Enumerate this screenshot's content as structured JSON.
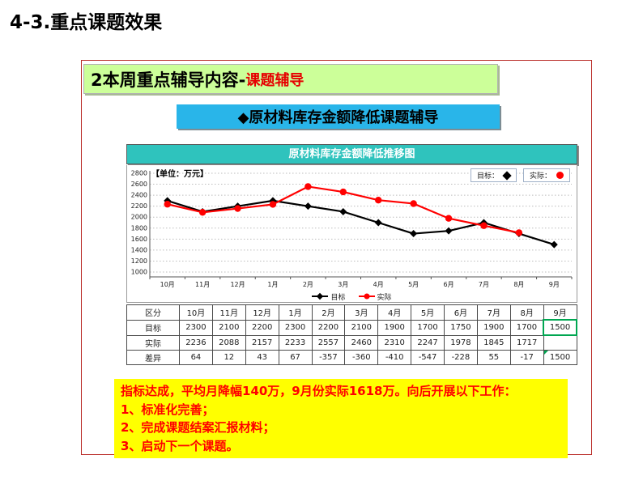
{
  "page_title": "4-3.重点课题效果",
  "header": {
    "main": "2本周重点辅导内容-",
    "highlight": "课题辅导"
  },
  "subheader": "◆原材料库存金额降低课题辅导",
  "chart_data": {
    "type": "line",
    "title": "原材料库存金额降低推移图",
    "unit_label": "【单位：万元】",
    "categories": [
      "10月",
      "11月",
      "12月",
      "1月",
      "2月",
      "3月",
      "4月",
      "5月",
      "6月",
      "7月",
      "8月",
      "9月"
    ],
    "series": [
      {
        "name": "目标",
        "marker": "diamond",
        "color": "#000000",
        "values": [
          2300,
          2100,
          2200,
          2300,
          2200,
          2100,
          1900,
          1700,
          1750,
          1900,
          1700,
          1500
        ]
      },
      {
        "name": "实际",
        "marker": "circle",
        "color": "#ff0000",
        "values": [
          2236,
          2088,
          2157,
          2233,
          2557,
          2460,
          2310,
          2247,
          1978,
          1845,
          1717,
          null
        ]
      }
    ],
    "ylim": [
      1000,
      2800
    ],
    "ytick_step": 200,
    "grid": "dotted-horizontal",
    "legend_top": [
      {
        "label": "目标：",
        "marker": "diamond",
        "color": "#000000"
      },
      {
        "label": "实际：",
        "marker": "circle",
        "color": "#ff0000"
      }
    ],
    "legend_bottom": [
      {
        "label": "目标",
        "marker": "diamond",
        "color": "#000000"
      },
      {
        "label": "实际",
        "marker": "circle",
        "color": "#ff0000"
      }
    ]
  },
  "table": {
    "header": [
      "区分",
      "10月",
      "11月",
      "12月",
      "1月",
      "2月",
      "3月",
      "4月",
      "5月",
      "6月",
      "7月",
      "8月",
      "9月"
    ],
    "rows": [
      {
        "label": "目标",
        "values": [
          "2300",
          "2100",
          "2200",
          "2300",
          "2200",
          "2100",
          "1900",
          "1700",
          "1750",
          "1900",
          "1700",
          "1500"
        ]
      },
      {
        "label": "实际",
        "values": [
          "2236",
          "2088",
          "2157",
          "2233",
          "2557",
          "2460",
          "2310",
          "2247",
          "1978",
          "1845",
          "1717",
          ""
        ]
      },
      {
        "label": "差异",
        "values": [
          "64",
          "12",
          "43",
          "67",
          "-357",
          "-360",
          "-410",
          "-547",
          "-228",
          "55",
          "-17",
          "1500"
        ]
      }
    ],
    "highlight_cell": {
      "row": 0,
      "col": 11
    },
    "corner_mark_cell": {
      "row": 2,
      "col": 11
    }
  },
  "note": {
    "lines": [
      "指标达成，平均月降幅140万，9月份实际1618万。向后开展以下工作：",
      "1、标准化完善；",
      "2、完成课题结案汇报材料；",
      "3、启动下一个课题。"
    ]
  },
  "colors": {
    "slide_border": "#b92b27",
    "header_bg": "#ccff99",
    "subheader_bg": "#29b5e9",
    "chart_title_bg": "#2fc3bd",
    "note_bg": "#ffff00",
    "note_text": "#ff0000",
    "target_series": "#000000",
    "actual_series": "#ff0000",
    "highlight_green": "#00a651"
  }
}
